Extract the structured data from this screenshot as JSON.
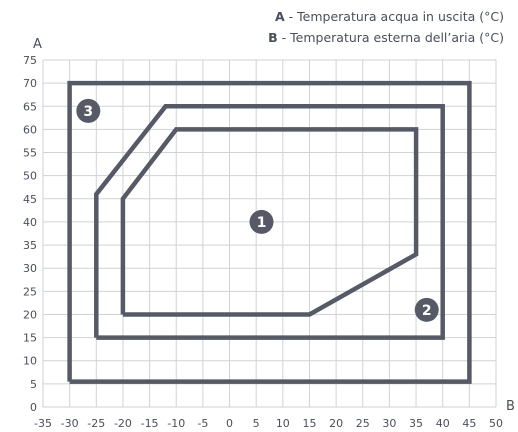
{
  "legend": [
    {
      "key": "A",
      "text": " - Temperatura acqua in uscita (°C)"
    },
    {
      "key": "B",
      "text": " - Temperatura esterna dell’aria (°C)"
    }
  ],
  "chart_data": {
    "type": "line",
    "xlabel": "B",
    "ylabel": "A",
    "xlim": [
      -35,
      50
    ],
    "ylim": [
      0,
      75
    ],
    "x_ticks": [
      "-35",
      "-30",
      "-25",
      "-20",
      "-15",
      "-10",
      "-5",
      "0",
      "5",
      "10",
      "15",
      "20",
      "25",
      "30",
      "35",
      "40",
      "45",
      "50"
    ],
    "y_ticks": [
      "0",
      "5",
      "10",
      "15",
      "20",
      "25",
      "30",
      "35",
      "40",
      "45",
      "50",
      "55",
      "60",
      "65",
      "70",
      "75"
    ],
    "grid": true,
    "line_color": "#555a66",
    "series": [
      {
        "label": "1",
        "label_at": {
          "x": 6,
          "y": 40
        },
        "points": [
          [
            -20,
            20
          ],
          [
            15,
            20
          ],
          [
            35,
            33
          ],
          [
            35,
            60
          ],
          [
            -10,
            60
          ],
          [
            -20,
            45
          ],
          [
            -20,
            20
          ]
        ]
      },
      {
        "label": "2",
        "label_at": {
          "x": 37,
          "y": 21
        },
        "points": [
          [
            -25,
            15
          ],
          [
            40,
            15
          ],
          [
            40,
            65
          ],
          [
            -12,
            65
          ],
          [
            -25,
            46
          ],
          [
            -25,
            15
          ]
        ]
      },
      {
        "label": "3",
        "label_at": {
          "x": -26.5,
          "y": 64
        },
        "points": [
          [
            -30,
            5.5
          ],
          [
            45,
            5.5
          ],
          [
            45,
            70
          ],
          [
            -30,
            70
          ],
          [
            -30,
            5.5
          ]
        ]
      }
    ]
  }
}
